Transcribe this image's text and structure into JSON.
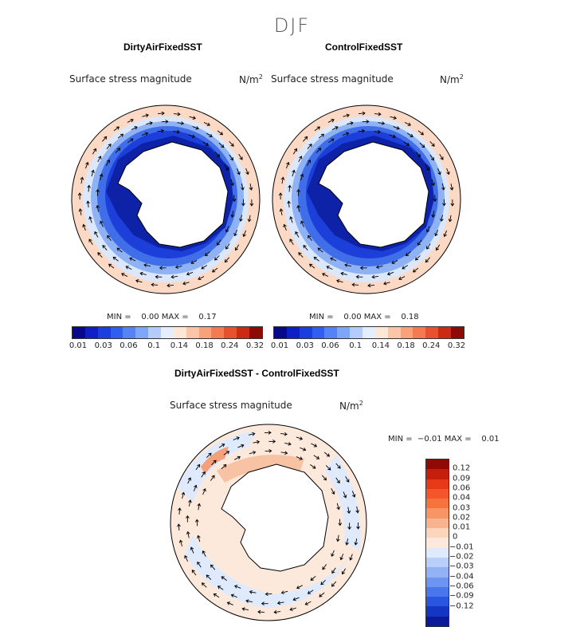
{
  "season": "DJF",
  "panels": [
    {
      "title": "DirtyAirFixedSST",
      "variable": "Surface stress magnitude",
      "units_base": "N/m",
      "units_exp": "2",
      "min_label": "MIN =    0.00 MAX =    0.17"
    },
    {
      "title": "ControlFixedSST",
      "variable": "Surface stress magnitude",
      "units_base": "N/m",
      "units_exp": "2",
      "min_label": "MIN =    0.00 MAX =    0.18"
    },
    {
      "title": "DirtyAirFixedSST - ControlFixedSST",
      "variable": "Surface stress magnitude",
      "units_base": "N/m",
      "units_exp": "2",
      "min_label": "MIN =  −0.01 MAX =    0.01"
    }
  ],
  "colorbar_top": {
    "colors": [
      "#08088c",
      "#0d20c8",
      "#1a3ee0",
      "#2f5ef0",
      "#5383f5",
      "#7ea6f8",
      "#b3ccfb",
      "#e4eefd",
      "#fde7d6",
      "#fcc6a6",
      "#f9a27a",
      "#f47a52",
      "#e8502e",
      "#cc2a12",
      "#8f0a05"
    ],
    "tick_labels": [
      "0.01",
      "0.03",
      "0.06",
      "0.1",
      "0.14",
      "0.18",
      "0.24",
      "0.32"
    ]
  },
  "colorbar_diff": {
    "colors": [
      "#8f0a05",
      "#c41f0c",
      "#e8381a",
      "#f5552a",
      "#f7733e",
      "#f79565",
      "#f8b48e",
      "#fbd6bd",
      "#fde9db",
      "#dfeafc",
      "#b9cffa",
      "#93b2f6",
      "#6d94f2",
      "#4a76ec",
      "#2a55de",
      "#1436c2",
      "#0a1a98"
    ],
    "tick_labels": [
      "0.12",
      "0.09",
      "0.06",
      "0.04",
      "0.03",
      "0.02",
      "0.01",
      "0",
      "−0.01",
      "−0.02",
      "−0.03",
      "−0.04",
      "−0.06",
      "−0.09",
      "−0.12"
    ]
  }
}
